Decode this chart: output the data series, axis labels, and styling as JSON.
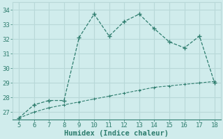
{
  "xlabel": "Humidex (Indice chaleur)",
  "x": [
    5,
    6,
    7,
    8,
    9,
    10,
    11,
    12,
    13,
    14,
    15,
    16,
    17,
    18
  ],
  "y_upper": [
    26.6,
    27.5,
    27.8,
    27.8,
    32.1,
    33.7,
    32.2,
    33.2,
    33.7,
    32.7,
    31.8,
    31.4,
    32.2,
    29.0
  ],
  "y_lower": [
    26.6,
    27.0,
    27.3,
    27.5,
    27.7,
    27.9,
    28.1,
    28.3,
    28.5,
    28.7,
    28.8,
    28.9,
    29.0,
    29.1
  ],
  "line_color": "#2e7d6e",
  "bg_color": "#d0ecec",
  "grid_color": "#b8d8d8",
  "tick_label_color": "#2e7d6e",
  "xlabel_color": "#2e7d6e",
  "ylim": [
    26.5,
    34.5
  ],
  "xlim": [
    4.6,
    18.4
  ],
  "yticks": [
    27,
    28,
    29,
    30,
    31,
    32,
    33,
    34
  ],
  "xticks": [
    5,
    6,
    7,
    8,
    9,
    10,
    11,
    12,
    13,
    14,
    15,
    16,
    17,
    18
  ]
}
